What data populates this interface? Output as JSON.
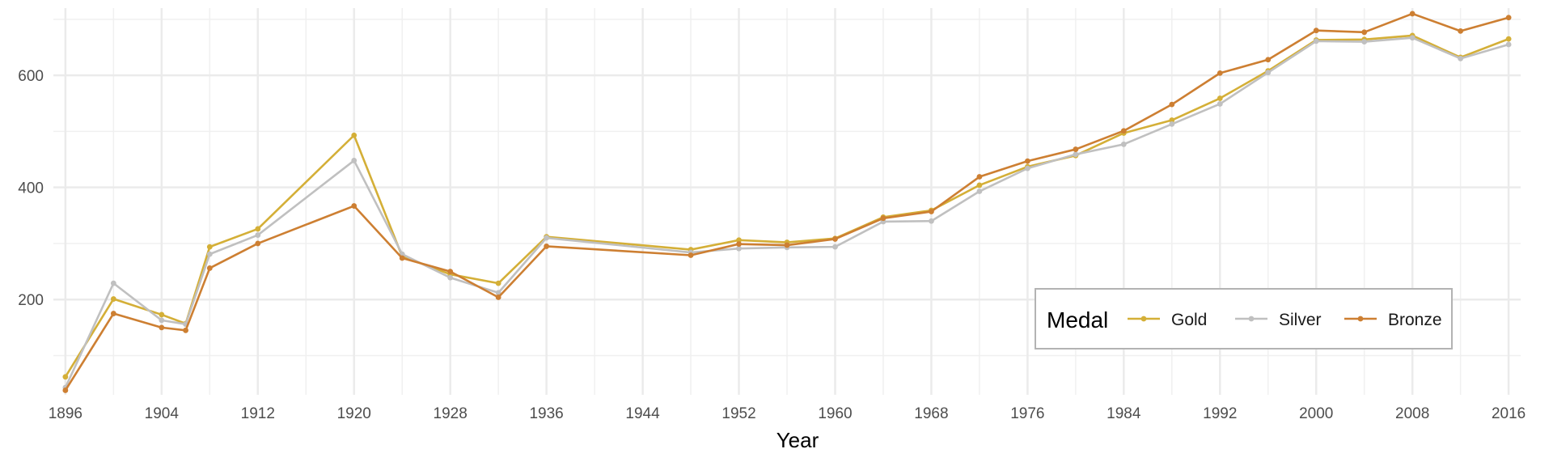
{
  "chart_data": {
    "type": "line",
    "xlabel": "Year",
    "ylabel": "",
    "xlim": [
      1895,
      2017
    ],
    "ylim": [
      30,
      720
    ],
    "x_ticks": [
      1896,
      1904,
      1912,
      1920,
      1928,
      1936,
      1944,
      1952,
      1960,
      1968,
      1976,
      1984,
      1992,
      2000,
      2008,
      2016
    ],
    "y_ticks": [
      200,
      400,
      600
    ],
    "grid": true,
    "legend": {
      "title": "Medal",
      "position": "bottom-right",
      "orientation": "horizontal"
    },
    "series": [
      {
        "name": "Gold",
        "color": "#D4AF37",
        "points": [
          [
            1896,
            62
          ],
          [
            1900,
            201
          ],
          [
            1904,
            173
          ],
          [
            1906,
            157
          ],
          [
            1908,
            294
          ],
          [
            1912,
            326
          ],
          [
            1920,
            493
          ],
          [
            1924,
            277
          ],
          [
            1928,
            245
          ],
          [
            1932,
            229
          ],
          [
            1936,
            312
          ],
          [
            1948,
            289
          ],
          [
            1952,
            306
          ],
          [
            1956,
            302
          ],
          [
            1960,
            309
          ],
          [
            1964,
            347
          ],
          [
            1968,
            359
          ],
          [
            1972,
            404
          ],
          [
            1976,
            437
          ],
          [
            1980,
            457
          ],
          [
            1984,
            497
          ],
          [
            1988,
            520
          ],
          [
            1992,
            559
          ],
          [
            1996,
            608
          ],
          [
            2000,
            663
          ],
          [
            2004,
            664
          ],
          [
            2008,
            671
          ],
          [
            2012,
            632
          ],
          [
            2016,
            665
          ]
        ]
      },
      {
        "name": "Silver",
        "color": "#C0C0C0",
        "points": [
          [
            1896,
            43
          ],
          [
            1900,
            229
          ],
          [
            1904,
            163
          ],
          [
            1906,
            156
          ],
          [
            1908,
            281
          ],
          [
            1912,
            315
          ],
          [
            1920,
            448
          ],
          [
            1924,
            281
          ],
          [
            1928,
            239
          ],
          [
            1932,
            212
          ],
          [
            1936,
            310
          ],
          [
            1948,
            284
          ],
          [
            1952,
            291
          ],
          [
            1956,
            293
          ],
          [
            1960,
            294
          ],
          [
            1964,
            339
          ],
          [
            1968,
            340
          ],
          [
            1972,
            393
          ],
          [
            1976,
            434
          ],
          [
            1980,
            459
          ],
          [
            1984,
            477
          ],
          [
            1988,
            513
          ],
          [
            1992,
            549
          ],
          [
            1996,
            605
          ],
          [
            2000,
            661
          ],
          [
            2004,
            660
          ],
          [
            2008,
            667
          ],
          [
            2012,
            630
          ],
          [
            2016,
            655
          ]
        ]
      },
      {
        "name": "Bronze",
        "color": "#CD7F32",
        "points": [
          [
            1896,
            38
          ],
          [
            1900,
            175
          ],
          [
            1904,
            150
          ],
          [
            1906,
            145
          ],
          [
            1908,
            256
          ],
          [
            1912,
            300
          ],
          [
            1920,
            367
          ],
          [
            1924,
            274
          ],
          [
            1928,
            250
          ],
          [
            1932,
            204
          ],
          [
            1936,
            295
          ],
          [
            1948,
            279
          ],
          [
            1952,
            299
          ],
          [
            1956,
            297
          ],
          [
            1960,
            308
          ],
          [
            1964,
            345
          ],
          [
            1968,
            357
          ],
          [
            1972,
            419
          ],
          [
            1976,
            447
          ],
          [
            1980,
            468
          ],
          [
            1984,
            501
          ],
          [
            1988,
            548
          ],
          [
            1992,
            604
          ],
          [
            1996,
            628
          ],
          [
            2000,
            680
          ],
          [
            2004,
            677
          ],
          [
            2008,
            710
          ],
          [
            2012,
            679
          ],
          [
            2016,
            703
          ]
        ]
      }
    ]
  }
}
